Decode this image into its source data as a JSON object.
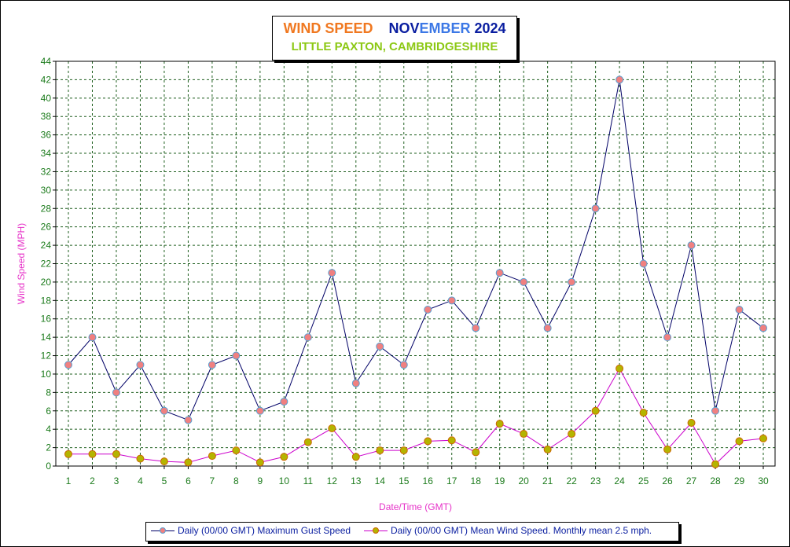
{
  "title": {
    "part1": "WIND SPEED",
    "part2a": "NOV",
    "part2b": "EMBER",
    "part3": "2024",
    "subtitle": "LITTLE PAXTON, CAMBRIDGESHIRE"
  },
  "colors": {
    "orange": "#f07820",
    "navy": "#0a1ea0",
    "blue": "#3c78e6",
    "lime": "#8cc814",
    "tick": "#1a7a1a",
    "grid": "#1f5f1f",
    "magenta": "#e632c8",
    "gust_line": "#000066",
    "gust_marker": "#f08080",
    "gust_marker_edge": "#5aa0d2",
    "mean_line": "#cc00cc",
    "mean_marker": "#b4b400",
    "mean_marker_edge": "#cc6600"
  },
  "chart_data": {
    "type": "line",
    "xlabel": "Date/Time (GMT)",
    "ylabel": "Wind Speed (MPH)",
    "ylim": [
      0,
      44
    ],
    "ytick_step": 2,
    "grid": true,
    "legend_position": "bottom",
    "x": [
      1,
      2,
      3,
      4,
      5,
      6,
      7,
      8,
      9,
      10,
      11,
      12,
      13,
      14,
      15,
      16,
      17,
      18,
      19,
      20,
      21,
      22,
      23,
      24,
      25,
      26,
      27,
      28,
      29,
      30
    ],
    "series": [
      {
        "name": "Daily (00/00 GMT) Maximum Gust Speed",
        "values": [
          11,
          14,
          8,
          11,
          6,
          5,
          11,
          12,
          6,
          7,
          14,
          21,
          9,
          13,
          11,
          17,
          18,
          15,
          21,
          20,
          15,
          20,
          28,
          42,
          22,
          14,
          24,
          6,
          17,
          15
        ]
      },
      {
        "name": "Daily (00/00 GMT) Mean Wind Speed. Monthly mean 2.5 mph.",
        "values": [
          1.3,
          1.3,
          1.3,
          0.8,
          0.5,
          0.4,
          1.1,
          1.7,
          0.4,
          1.0,
          2.6,
          4.1,
          1.0,
          1.7,
          1.7,
          2.7,
          2.8,
          1.5,
          4.6,
          3.5,
          1.8,
          3.5,
          6.0,
          10.6,
          5.8,
          1.8,
          4.7,
          0.2,
          2.7,
          3.0
        ]
      }
    ]
  }
}
